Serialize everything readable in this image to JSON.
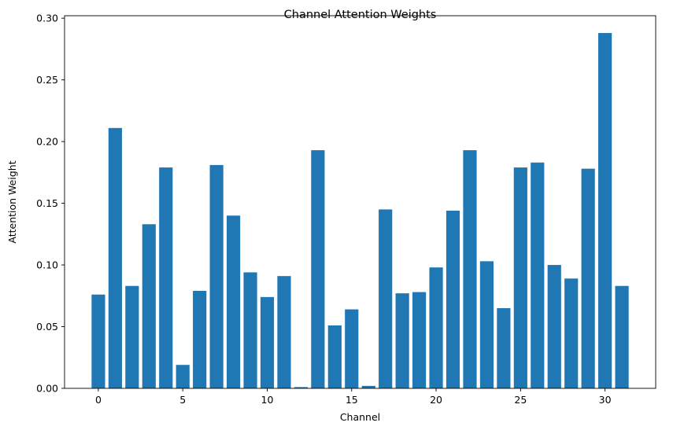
{
  "chart_data": {
    "type": "bar",
    "title": "Channel Attention Weights",
    "xlabel": "Channel",
    "ylabel": "Attention Weight",
    "color": "#1f77b4",
    "x": [
      0,
      1,
      2,
      3,
      4,
      5,
      6,
      7,
      8,
      9,
      10,
      11,
      12,
      13,
      14,
      15,
      16,
      17,
      18,
      19,
      20,
      21,
      22,
      23,
      24,
      25,
      26,
      27,
      28,
      29,
      30,
      31
    ],
    "values": [
      0.076,
      0.211,
      0.083,
      0.133,
      0.179,
      0.019,
      0.079,
      0.181,
      0.14,
      0.094,
      0.074,
      0.091,
      0.001,
      0.193,
      0.051,
      0.064,
      0.002,
      0.145,
      0.077,
      0.078,
      0.098,
      0.144,
      0.193,
      0.103,
      0.065,
      0.179,
      0.183,
      0.1,
      0.089,
      0.178,
      0.288,
      0.083
    ],
    "xlim": [
      -2.0,
      33.0
    ],
    "ylim": [
      0.0,
      0.302
    ],
    "xticks": [
      0,
      5,
      10,
      15,
      20,
      25,
      30
    ],
    "xtick_labels": [
      "0",
      "5",
      "10",
      "15",
      "20",
      "25",
      "30"
    ],
    "yticks": [
      0.0,
      0.05,
      0.1,
      0.15,
      0.2,
      0.25,
      0.3
    ],
    "ytick_labels": [
      "0.00",
      "0.05",
      "0.10",
      "0.15",
      "0.20",
      "0.25",
      "0.30"
    ],
    "grid": false,
    "legend": "none"
  }
}
